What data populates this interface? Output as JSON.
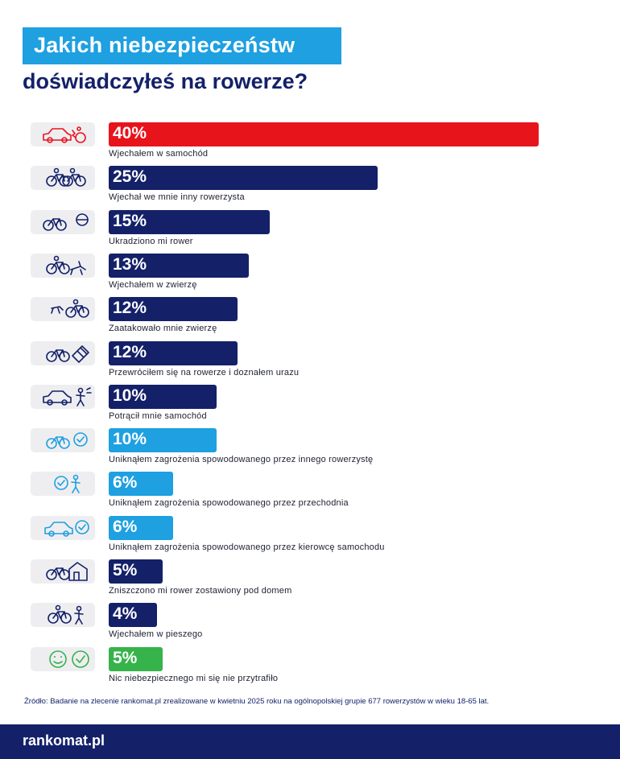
{
  "title_line1": "Jakich niebezpieczeństw",
  "title_line2": "doświadczyłeś na rowerze?",
  "chart_data": {
    "type": "bar",
    "orientation": "horizontal",
    "title": "Jakich niebezpieczeństw doświadczyłeś na rowerze?",
    "unit": "%",
    "xlim": [
      0,
      40
    ],
    "categories": [
      "Wjechałem w samochód",
      "Wjechał we mnie inny rowerzysta",
      "Ukradziono mi rower",
      "Wjechałem w zwierzę",
      "Zaatakowało mnie zwierzę",
      "Przewróciłem się na rowerze i doznałem urazu",
      "Potrącił mnie samochód",
      "Uniknąłem zagrożenia spowodowanego przez innego rowerzystę",
      "Uniknąłem zagrożenia spowodowanego przez przechodnia",
      "Uniknąłem zagrożenia spowodowanego przez kierowcę samochodu",
      "Zniszczono mi rower zostawiony pod domem",
      "Wjechałem w pieszego",
      "Nic niebezpiecznego mi się nie przytrafiło"
    ],
    "values": [
      40,
      25,
      15,
      13,
      12,
      12,
      10,
      10,
      6,
      6,
      5,
      4,
      5
    ],
    "value_labels": [
      "40%",
      "25%",
      "15%",
      "13%",
      "12%",
      "12%",
      "10%",
      "10%",
      "6%",
      "6%",
      "5%",
      "4%",
      "5%"
    ],
    "bar_colors": [
      "#e8141c",
      "#142169",
      "#142169",
      "#142169",
      "#142169",
      "#142169",
      "#142169",
      "#1ea0e1",
      "#1ea0e1",
      "#1ea0e1",
      "#142169",
      "#142169",
      "#36b34a"
    ],
    "icons": [
      "car-bike-crash-icon",
      "cyclists-collision-icon",
      "bike-thief-icon",
      "cyclist-animal-crash-icon",
      "animal-attack-icon",
      "bike-bandage-icon",
      "car-hit-pedestrian-icon",
      "bike-check-icon",
      "pedestrian-check-icon",
      "car-check-icon",
      "bike-house-icon",
      "cyclist-pedestrian-icon",
      "smile-check-icon"
    ],
    "icon_colors": [
      "#e8141c",
      "#142169",
      "#142169",
      "#142169",
      "#142169",
      "#142169",
      "#142169",
      "#1ea0e1",
      "#1ea0e1",
      "#1ea0e1",
      "#142169",
      "#142169",
      "#36b34a"
    ]
  },
  "source": "Źródło: Badanie na zlecenie rankomat.pl zrealizowane w kwietniu 2025 roku na ogólnopolskiej grupie 677 rowerzystów w wieku 18-65 lat.",
  "logo": "rankomat.pl"
}
